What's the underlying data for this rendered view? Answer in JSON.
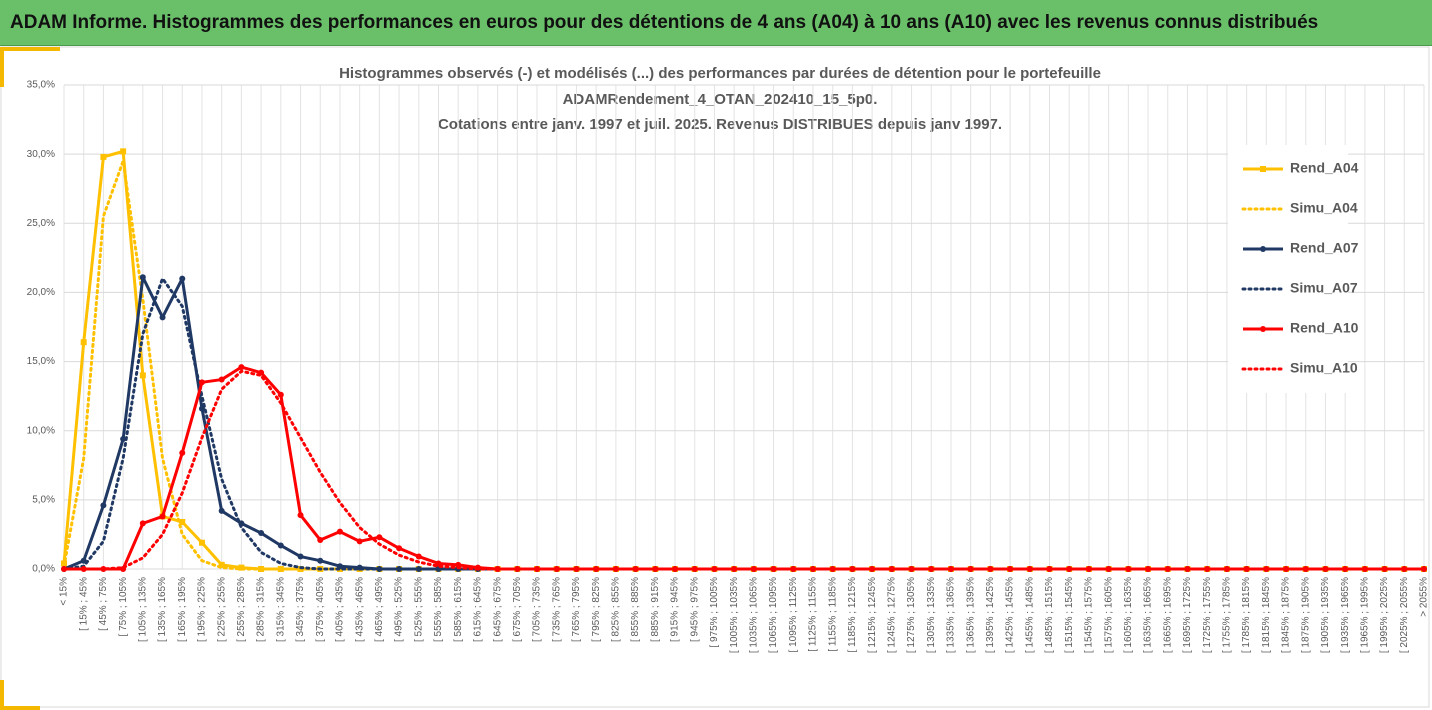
{
  "header": {
    "title": "ADAM Informe. Histogrammes des performances en euros pour des détentions de 4 ans (A04) à 10 ans (A10) avec les revenus connus distribués"
  },
  "chart_data": {
    "type": "line",
    "title": [
      "Histogrammes observés (-) et modélisés (...) des performances par durées de détention pour le portefeuille",
      "ADAMRendement_4_OTAN_202410_15_5p0."
    ],
    "subtitle": "Cotations entre janv. 1997 et juil. 2025. Revenus DISTRIBUES depuis janv 1997.",
    "categories": [
      "< 15%",
      "[ 15% ; 45%",
      "[ 45% ; 75%",
      "[ 75% ; 105%",
      "[ 105% ; 135%",
      "[ 135% ; 165%",
      "[ 165% ; 195%",
      "[ 195% ; 225%",
      "[ 225% ; 255%",
      "[ 255% ; 285%",
      "[ 285% ; 315%",
      "[ 315% ; 345%",
      "[ 345% ; 375%",
      "[ 375% ; 405%",
      "[ 405% ; 435%",
      "[ 435% ; 465%",
      "[ 465% ; 495%",
      "[ 495% ; 525%",
      "[ 525% ; 555%",
      "[ 555% ; 585%",
      "[ 585% ; 615%",
      "[ 615% ; 645%",
      "[ 645% ; 675%",
      "[ 675% ; 705%",
      "[ 705% ; 735%",
      "[ 735% ; 765%",
      "[ 765% ; 795%",
      "[ 795% ; 825%",
      "[ 825% ; 855%",
      "[ 855% ; 885%",
      "[ 885% ; 915%",
      "[ 915% ; 945%",
      "[ 945% ; 975%",
      "[ 975% ; 1005%",
      "[ 1005% ; 1035%",
      "[ 1035% ; 1065%",
      "[ 1065% ; 1095%",
      "[ 1095% ; 1125%",
      "[ 1125% ; 1155%",
      "[ 1155% ; 1185%",
      "[ 1185% ; 1215%",
      "[ 1215% ; 1245%",
      "[ 1245% ; 1275%",
      "[ 1275% ; 1305%",
      "[ 1305% ; 1335%",
      "[ 1335% ; 1365%",
      "[ 1365% ; 1395%",
      "[ 1395% ; 1425%",
      "[ 1425% ; 1455%",
      "[ 1455% ; 1485%",
      "[ 1485% ; 1515%",
      "[ 1515% ; 1545%",
      "[ 1545% ; 1575%",
      "[ 1575% ; 1605%",
      "[ 1605% ; 1635%",
      "[ 1635% ; 1665%",
      "[ 1665% ; 1695%",
      "[ 1695% ; 1725%",
      "[ 1725% ; 1755%",
      "[ 1755% ; 1785%",
      "[ 1785% ; 1815%",
      "[ 1815% ; 1845%",
      "[ 1845% ; 1875%",
      "[ 1875% ; 1905%",
      "[ 1905% ; 1935%",
      "[ 1935% ; 1965%",
      "[ 1965% ; 1995%",
      "[ 1995% ; 2025%",
      "[ 2025% ; 2055%",
      "> 2055%"
    ],
    "series": [
      {
        "name": "Rend_A04",
        "color": "#ffc000",
        "style": "solid",
        "marker": "square",
        "values": [
          0.4,
          16.4,
          29.8,
          30.2,
          14.0,
          3.8,
          3.4,
          1.9,
          0.3,
          0.1,
          0,
          0,
          0,
          0,
          0,
          0,
          0,
          0,
          0,
          0,
          0,
          0,
          0,
          0,
          0,
          0,
          0,
          0,
          0,
          0,
          0,
          0,
          0,
          0,
          0,
          0,
          0,
          0,
          0,
          0,
          0,
          0,
          0,
          0,
          0,
          0,
          0,
          0,
          0,
          0,
          0,
          0,
          0,
          0,
          0,
          0,
          0,
          0,
          0,
          0,
          0,
          0,
          0,
          0,
          0,
          0,
          0,
          0,
          0,
          0
        ]
      },
      {
        "name": "Simu_A04",
        "color": "#ffc000",
        "style": "dotted",
        "values": [
          0.2,
          8.0,
          25.5,
          29.5,
          19.5,
          8.0,
          2.5,
          0.6,
          0.1,
          0,
          0,
          0,
          0,
          0,
          0,
          0,
          0,
          0,
          0,
          0,
          0,
          0,
          0,
          0,
          0,
          0,
          0,
          0,
          0,
          0,
          0,
          0,
          0,
          0,
          0,
          0,
          0,
          0,
          0,
          0,
          0,
          0,
          0,
          0,
          0,
          0,
          0,
          0,
          0,
          0,
          0,
          0,
          0,
          0,
          0,
          0,
          0,
          0,
          0,
          0,
          0,
          0,
          0,
          0,
          0,
          0,
          0,
          0,
          0,
          0
        ]
      },
      {
        "name": "Rend_A07",
        "color": "#1f3864",
        "style": "solid",
        "marker": "circle",
        "values": [
          0,
          0.6,
          4.6,
          9.4,
          21.1,
          18.2,
          21.0,
          11.6,
          4.2,
          3.3,
          2.6,
          1.7,
          0.9,
          0.6,
          0.2,
          0.1,
          0,
          0,
          0,
          0,
          0,
          0,
          0,
          0,
          0,
          0,
          0,
          0,
          0,
          0,
          0,
          0,
          0,
          0,
          0,
          0,
          0,
          0,
          0,
          0,
          0,
          0,
          0,
          0,
          0,
          0,
          0,
          0,
          0,
          0,
          0,
          0,
          0,
          0,
          0,
          0,
          0,
          0,
          0,
          0,
          0,
          0,
          0,
          0,
          0,
          0,
          0,
          0,
          0,
          0
        ]
      },
      {
        "name": "Simu_A07",
        "color": "#1f3864",
        "style": "dotted",
        "values": [
          0,
          0.2,
          2.0,
          8.0,
          17.0,
          21.0,
          19.0,
          12.5,
          6.5,
          3.0,
          1.2,
          0.4,
          0.1,
          0,
          0,
          0,
          0,
          0,
          0,
          0,
          0,
          0,
          0,
          0,
          0,
          0,
          0,
          0,
          0,
          0,
          0,
          0,
          0,
          0,
          0,
          0,
          0,
          0,
          0,
          0,
          0,
          0,
          0,
          0,
          0,
          0,
          0,
          0,
          0,
          0,
          0,
          0,
          0,
          0,
          0,
          0,
          0,
          0,
          0,
          0,
          0,
          0,
          0,
          0,
          0,
          0,
          0,
          0,
          0,
          0
        ]
      },
      {
        "name": "Rend_A10",
        "color": "#ff0000",
        "style": "solid",
        "marker": "circle",
        "values": [
          0,
          0,
          0,
          0,
          3.3,
          3.8,
          8.4,
          13.5,
          13.7,
          14.6,
          14.2,
          12.6,
          3.9,
          2.1,
          2.7,
          2.0,
          2.3,
          1.5,
          0.9,
          0.4,
          0.3,
          0.1,
          0,
          0,
          0,
          0,
          0,
          0,
          0,
          0,
          0,
          0,
          0,
          0,
          0,
          0,
          0,
          0,
          0,
          0,
          0,
          0,
          0,
          0,
          0,
          0,
          0,
          0,
          0,
          0,
          0,
          0,
          0,
          0,
          0,
          0,
          0,
          0,
          0,
          0,
          0,
          0,
          0,
          0,
          0,
          0,
          0,
          0,
          0,
          0
        ]
      },
      {
        "name": "Simu_A10",
        "color": "#ff0000",
        "style": "dotted",
        "values": [
          0,
          0,
          0,
          0.1,
          0.8,
          2.5,
          5.5,
          9.5,
          13.0,
          14.3,
          14.0,
          12.0,
          9.5,
          7.0,
          4.8,
          3.0,
          1.8,
          1.0,
          0.5,
          0.2,
          0.1,
          0,
          0,
          0,
          0,
          0,
          0,
          0,
          0,
          0,
          0,
          0,
          0,
          0,
          0,
          0,
          0,
          0,
          0,
          0,
          0,
          0,
          0,
          0,
          0,
          0,
          0,
          0,
          0,
          0,
          0,
          0,
          0,
          0,
          0,
          0,
          0,
          0,
          0,
          0,
          0,
          0,
          0,
          0,
          0,
          0,
          0,
          0,
          0,
          0
        ]
      }
    ],
    "ylim": [
      0,
      35
    ],
    "yticks": [
      {
        "value": 0,
        "label": "0,0%"
      },
      {
        "value": 5,
        "label": "5,0%"
      },
      {
        "value": 10,
        "label": "10,0%"
      },
      {
        "value": 15,
        "label": "15,0%"
      },
      {
        "value": 20,
        "label": "20,0%"
      },
      {
        "value": 25,
        "label": "25,0%"
      },
      {
        "value": 30,
        "label": "30,0%"
      },
      {
        "value": 35,
        "label": "35,0%"
      }
    ],
    "grid": true,
    "legend": "right"
  }
}
